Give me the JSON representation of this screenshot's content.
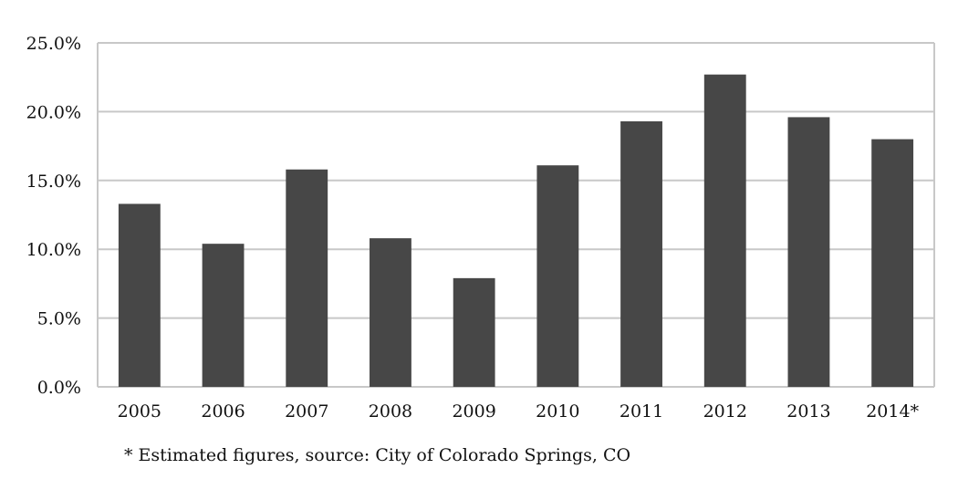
{
  "chart_data": {
    "type": "bar",
    "categories": [
      "2005",
      "2006",
      "2007",
      "2008",
      "2009",
      "2010",
      "2011",
      "2012",
      "2013",
      "2014*"
    ],
    "values": [
      13.3,
      10.4,
      15.8,
      10.8,
      7.9,
      16.1,
      19.3,
      22.7,
      19.6,
      18.0
    ],
    "unit": "%",
    "ylim": [
      0,
      25
    ],
    "yticks": [
      "0.0%",
      "5.0%",
      "10.0%",
      "15.0%",
      "20.0%",
      "25.0%"
    ],
    "ytick_values": [
      0,
      5,
      10,
      15,
      20,
      25
    ],
    "grid": true,
    "legend": "none",
    "bar_color": "#474747",
    "grid_color": "#c8c8c8",
    "frame_color": "#c8c8c8"
  },
  "footnote": "* Estimated figures, source: City of Colorado Springs, CO"
}
